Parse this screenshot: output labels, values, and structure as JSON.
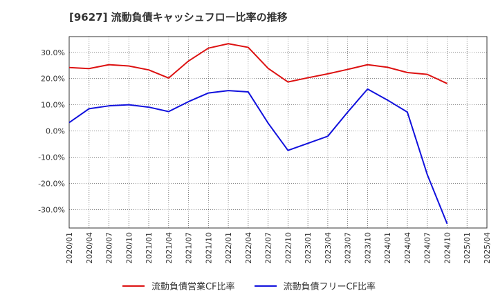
{
  "title": "[9627]  流動負債キャッシュフロー比率の推移",
  "chart_data": {
    "type": "line",
    "x": [
      "2020/01",
      "2020/04",
      "2020/07",
      "2020/10",
      "2021/01",
      "2021/04",
      "2021/07",
      "2021/10",
      "2022/01",
      "2022/04",
      "2022/07",
      "2022/10",
      "2023/01",
      "2023/04",
      "2023/07",
      "2023/10",
      "2024/01",
      "2024/04",
      "2024/07",
      "2024/10",
      "2025/01",
      "2025/04"
    ],
    "ylim": [
      -37,
      36
    ],
    "yticks": [
      30,
      20,
      10,
      0,
      -10,
      -20,
      -30
    ],
    "ytick_labels": [
      "30.0%",
      "20.0%",
      "10.0%",
      "0.0%",
      "-10.0%",
      "-20.0%",
      "-30.0%"
    ],
    "grid": true,
    "legend_position": "bottom",
    "series": [
      {
        "name": "流動負債営業CF比率",
        "color": "#dd1111",
        "values": [
          24.2,
          23.8,
          25.3,
          24.8,
          23.3,
          20.2,
          26.7,
          31.6,
          33.3,
          31.9,
          23.9,
          18.7,
          20.3,
          21.8,
          23.5,
          25.3,
          24.3,
          22.3,
          21.6,
          18.1,
          null,
          null
        ]
      },
      {
        "name": "流動負債フリーCF比率",
        "color": "#1111dd",
        "values": [
          3.2,
          8.5,
          9.6,
          10.0,
          9.1,
          7.4,
          11.2,
          14.5,
          15.4,
          14.9,
          3.0,
          -7.4,
          -4.7,
          -2.0,
          7.2,
          16.0,
          11.8,
          7.2,
          -16.6,
          -35.4,
          null,
          null
        ]
      }
    ]
  }
}
